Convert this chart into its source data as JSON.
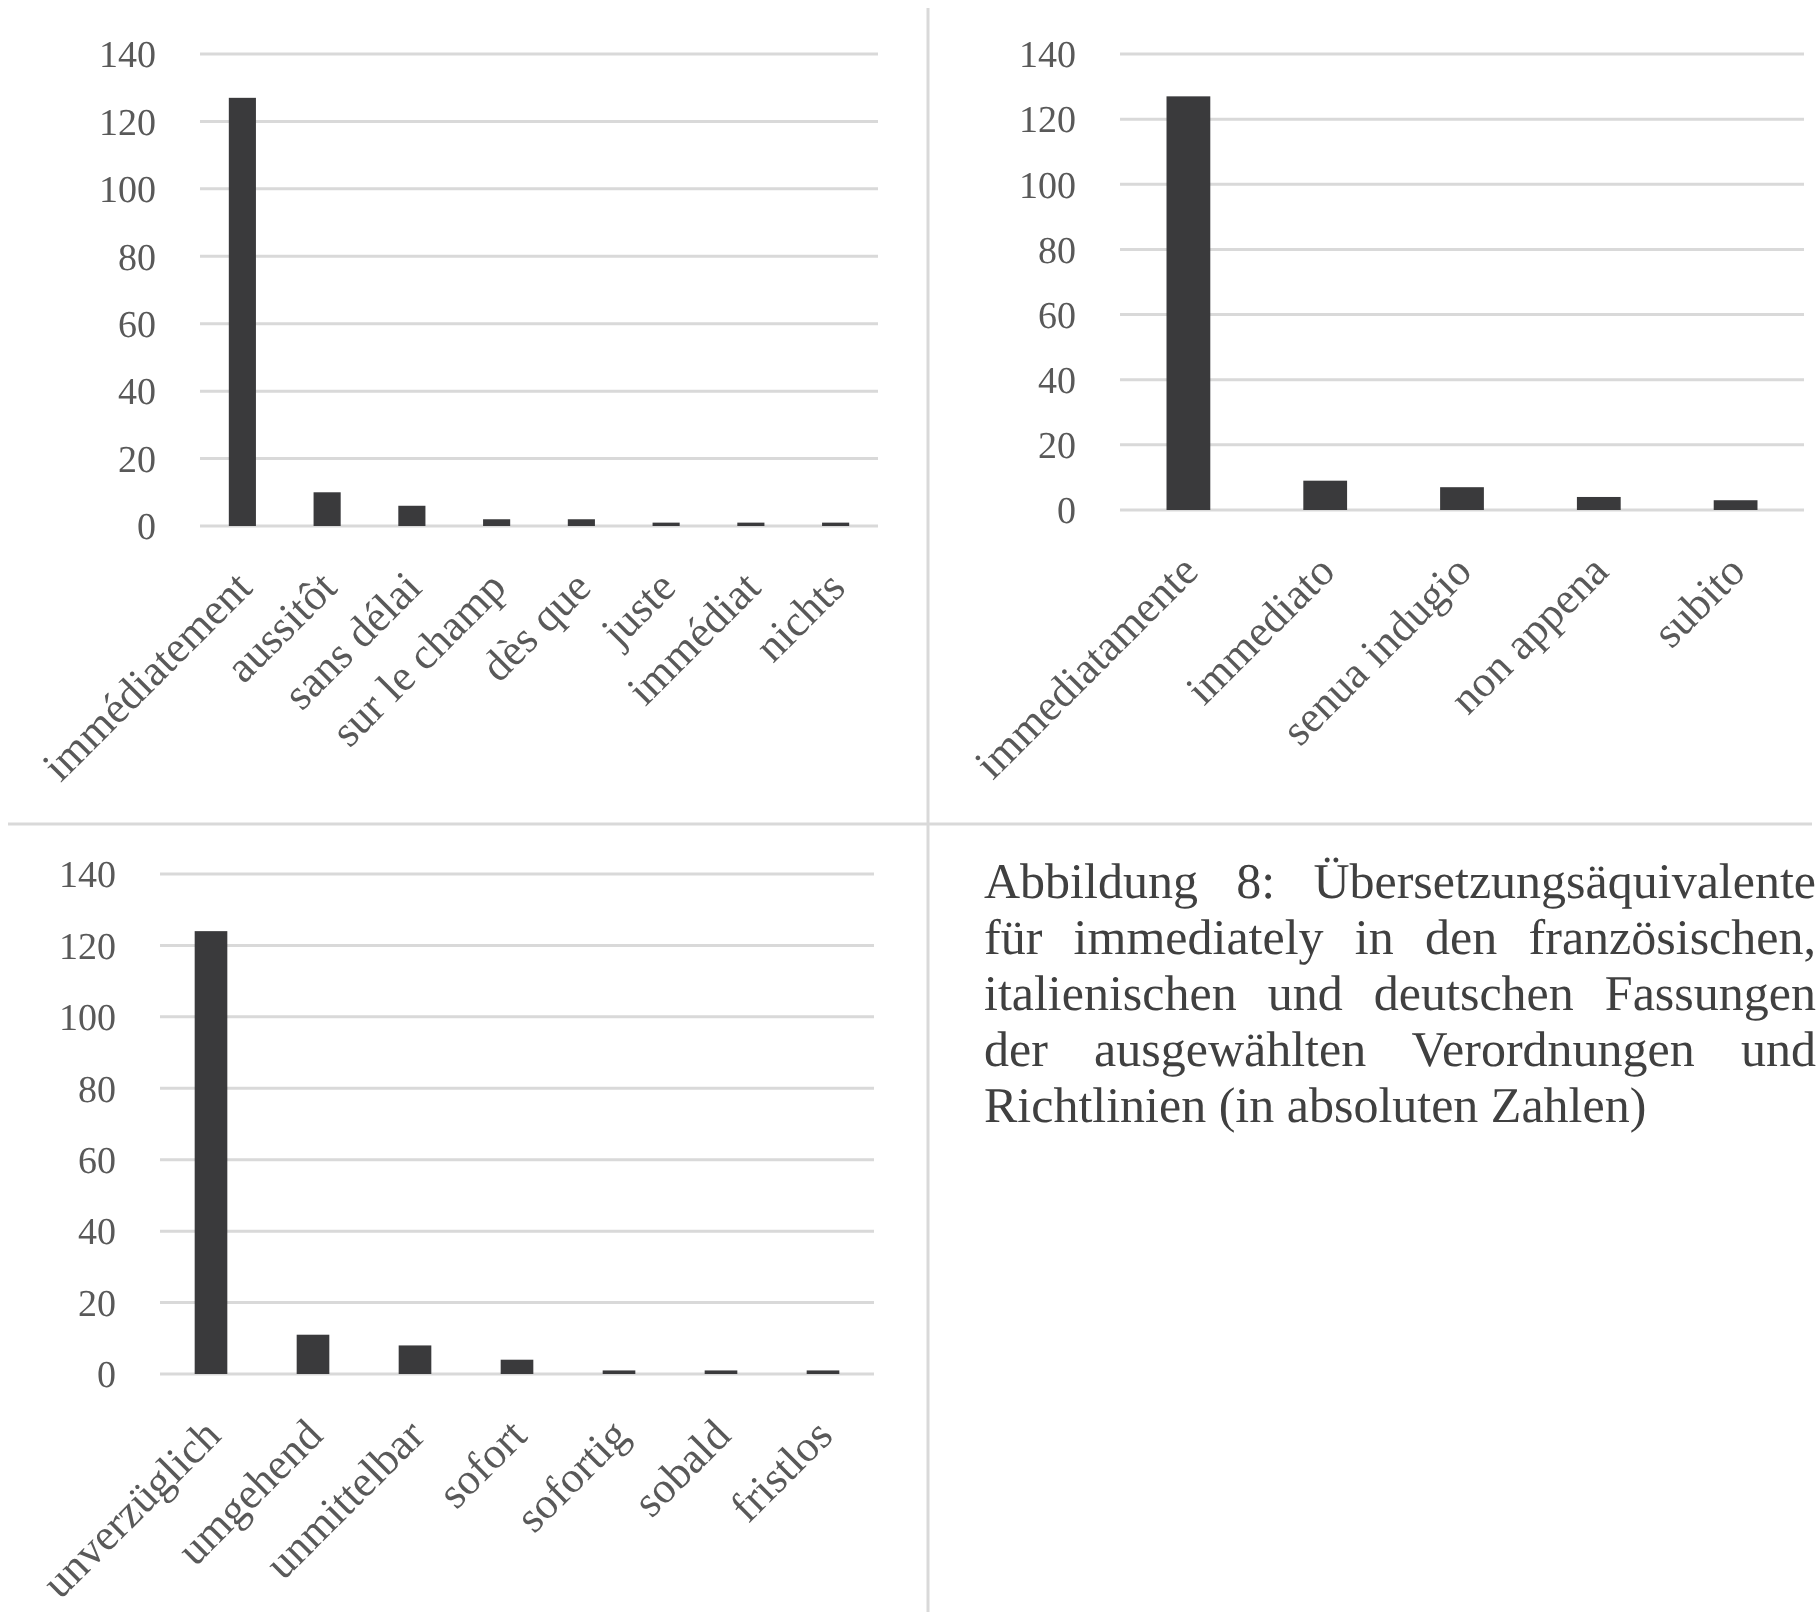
{
  "chart_data": [
    {
      "type": "bar",
      "categories": [
        "immédiatement",
        "aussitôt",
        "sans délai",
        "sur le champ",
        "dès que",
        "juste",
        "immédiat",
        "nichts"
      ],
      "values": [
        127,
        10,
        6,
        2,
        2,
        1,
        1,
        1
      ],
      "color": "#3a3a3c",
      "ylim": [
        0,
        140
      ],
      "yticks": [
        0,
        20,
        40,
        60,
        80,
        100,
        120,
        140
      ],
      "grid": "y"
    },
    {
      "type": "bar",
      "categories": [
        "immediatamente",
        "immediato",
        "senua indugio",
        "non appena",
        "subito"
      ],
      "values": [
        127,
        9,
        7,
        4,
        3
      ],
      "color": "#3a3a3c",
      "ylim": [
        0,
        140
      ],
      "yticks": [
        0,
        20,
        40,
        60,
        80,
        100,
        120,
        140
      ],
      "grid": "y"
    },
    {
      "type": "bar",
      "categories": [
        "unverzüglich",
        "umgehend",
        "unmittelbar",
        "sofort",
        "sofortig",
        "sobald",
        "fristlos"
      ],
      "values": [
        124,
        11,
        8,
        4,
        1,
        1,
        1
      ],
      "color": "#3a3a3c",
      "ylim": [
        0,
        140
      ],
      "yticks": [
        0,
        20,
        40,
        60,
        80,
        100,
        120,
        140
      ],
      "grid": "y"
    },
    {
      "type": "other",
      "annotations": [
        "Abbildung 8: Übersetzungsäquivalente für immediately in den französischen, italienischen und deutschen Fassungen der ausgewählten Verordnungen und Richtlinien (in absoluten Zahlen)"
      ]
    }
  ]
}
